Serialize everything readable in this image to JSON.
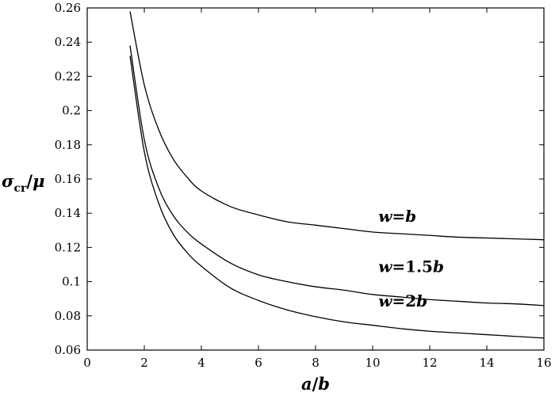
{
  "chart_data": {
    "type": "line",
    "xlabel": {
      "main": "a",
      "slash": "/",
      "den": "b"
    },
    "ylabel": {
      "sigma": "σ",
      "subscript": "cr",
      "slash": "/",
      "mu": "μ"
    },
    "xlim": [
      0,
      16
    ],
    "ylim": [
      0.06,
      0.26
    ],
    "xticks": [
      "0",
      "2",
      "4",
      "6",
      "8",
      "10",
      "12",
      "14",
      "16"
    ],
    "yticks": [
      "0.06",
      "0.08",
      "0.1",
      "0.12",
      "0.14",
      "0.16",
      "0.18",
      "0.2",
      "0.22",
      "0.24",
      "0.26"
    ],
    "grid": false,
    "series": [
      {
        "name": "w=b",
        "label_parts": [
          "w",
          "=",
          "b"
        ],
        "label_at": [
          10.2,
          0.135
        ],
        "x": [
          1.5,
          2,
          2.5,
          3,
          3.5,
          4,
          5,
          6,
          7,
          8,
          9,
          10,
          11,
          12,
          13,
          14,
          15,
          16
        ],
        "values": [
          0.258,
          0.215,
          0.189,
          0.172,
          0.161,
          0.153,
          0.144,
          0.139,
          0.135,
          0.133,
          0.131,
          0.129,
          0.128,
          0.127,
          0.126,
          0.1255,
          0.125,
          0.1245
        ]
      },
      {
        "name": "w=1.5b",
        "label_parts": [
          "w",
          "=1.5",
          "b"
        ],
        "label_at": [
          10.2,
          0.1055
        ],
        "x": [
          1.5,
          2,
          2.5,
          3,
          3.5,
          4,
          5,
          6,
          7,
          8,
          9,
          10,
          11,
          12,
          13,
          14,
          15,
          16
        ],
        "values": [
          0.238,
          0.183,
          0.155,
          0.139,
          0.129,
          0.122,
          0.111,
          0.104,
          0.1,
          0.097,
          0.095,
          0.0925,
          0.091,
          0.0895,
          0.0885,
          0.0875,
          0.087,
          0.086
        ]
      },
      {
        "name": "w=2b",
        "label_parts": [
          "w",
          "=2",
          "b"
        ],
        "label_at": [
          10.2,
          0.0855
        ],
        "x": [
          1.5,
          2,
          2.5,
          3,
          3.5,
          4,
          5,
          6,
          7,
          8,
          9,
          10,
          11,
          12,
          13,
          14,
          15,
          16
        ],
        "values": [
          0.232,
          0.176,
          0.146,
          0.128,
          0.117,
          0.109,
          0.0965,
          0.089,
          0.0835,
          0.0795,
          0.0765,
          0.0745,
          0.0725,
          0.071,
          0.07,
          0.069,
          0.068,
          0.067
        ]
      }
    ]
  }
}
